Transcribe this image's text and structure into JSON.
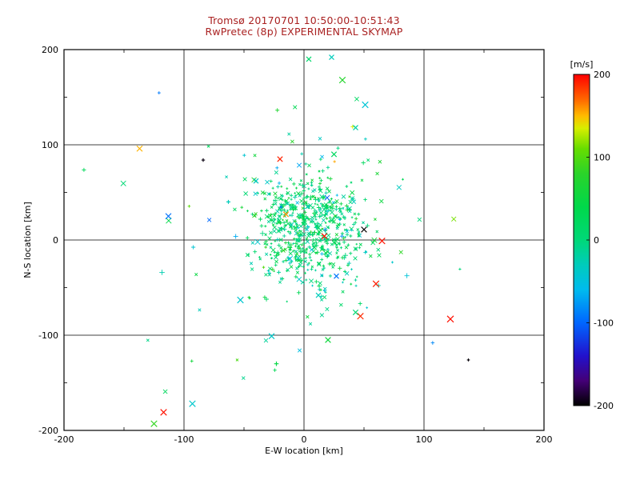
{
  "window": {
    "background": "#ffffff"
  },
  "chart_data": {
    "type": "scatter",
    "title": "Tromsø 20170701 10:50:00-10:51:43",
    "subtitle": "RwPretec (8p) EXPERIMENTAL SKYMAP",
    "title_color": "#aa2222",
    "xlabel": "E-W location [km]",
    "ylabel": "N-S location [km]",
    "xlim": [
      -200,
      200
    ],
    "ylim": [
      -200,
      200
    ],
    "xticks": [
      -200,
      -100,
      0,
      100,
      200
    ],
    "yticks": [
      -200,
      -100,
      0,
      100,
      200
    ],
    "minor_tick_step": 50,
    "grid": true,
    "axis_color": "#000000",
    "colorbar": {
      "title": "[m/s]",
      "title_color": "#ee2200",
      "vmin": -200,
      "vmax": 200,
      "ticks": [
        200,
        100,
        0,
        -100,
        -200
      ]
    },
    "colormap_stops": [
      {
        "v": 200,
        "color": "#ff0000"
      },
      {
        "v": 170,
        "color": "#ff6600"
      },
      {
        "v": 150,
        "color": "#ffbb00"
      },
      {
        "v": 135,
        "color": "#d8ee00"
      },
      {
        "v": 110,
        "color": "#66dd00"
      },
      {
        "v": 80,
        "color": "#2ad42a"
      },
      {
        "v": 40,
        "color": "#00d84a"
      },
      {
        "v": 0,
        "color": "#00d878"
      },
      {
        "v": -30,
        "color": "#00ccbb"
      },
      {
        "v": -60,
        "color": "#00bbee"
      },
      {
        "v": -100,
        "color": "#0066ff"
      },
      {
        "v": -140,
        "color": "#2211cc"
      },
      {
        "v": -170,
        "color": "#440077"
      },
      {
        "v": -200,
        "color": "#000000"
      }
    ],
    "point_clusters": [
      {
        "count": 640,
        "cx": 4,
        "cy": 12,
        "sx": 24,
        "sy": 28,
        "vmean": 15,
        "vsigma": 30,
        "seed": 1337,
        "size": 1.7
      },
      {
        "count": 90,
        "cx": 0,
        "cy": 5,
        "sx": 75,
        "sy": 80,
        "vmean": 0,
        "vsigma": 60,
        "seed": 2024,
        "size": 2.1
      }
    ],
    "outlier_points": [
      {
        "x": -137,
        "y": 96,
        "v": 152,
        "m": "x",
        "s": 3.5
      },
      {
        "x": -84,
        "y": 84,
        "v": -196,
        "m": "plus",
        "s": 2.2
      },
      {
        "x": -113,
        "y": 25,
        "v": -95,
        "m": "x",
        "s": 3.5
      },
      {
        "x": -20,
        "y": 85,
        "v": 190,
        "m": "x",
        "s": 3.2
      },
      {
        "x": 32,
        "y": 168,
        "v": 75,
        "m": "x",
        "s": 3.8
      },
      {
        "x": 4,
        "y": 190,
        "v": 10,
        "m": "x",
        "s": 3.0
      },
      {
        "x": 23,
        "y": 192,
        "v": -30,
        "m": "x",
        "s": 3.0
      },
      {
        "x": 51,
        "y": 142,
        "v": -45,
        "m": "x",
        "s": 3.8
      },
      {
        "x": 43,
        "y": 118,
        "v": -20,
        "m": "x",
        "s": 3.0
      },
      {
        "x": 25,
        "y": 90,
        "v": 20,
        "m": "x",
        "s": 3.2
      },
      {
        "x": -40,
        "y": 62,
        "v": -35,
        "m": "x",
        "s": 3.0
      },
      {
        "x": -63,
        "y": 40,
        "v": -30,
        "m": "plus",
        "s": 2.5
      },
      {
        "x": -15,
        "y": 27,
        "v": 160,
        "m": "x",
        "s": 3.2
      },
      {
        "x": 17,
        "y": 4,
        "v": 195,
        "m": "x",
        "s": 3.4
      },
      {
        "x": 50,
        "y": 11,
        "v": -200,
        "m": "x",
        "s": 3.4
      },
      {
        "x": 65,
        "y": -1,
        "v": 195,
        "m": "x",
        "s": 3.8
      },
      {
        "x": 60,
        "y": -46,
        "v": 192,
        "m": "x",
        "s": 3.8
      },
      {
        "x": 47,
        "y": -80,
        "v": 188,
        "m": "x",
        "s": 3.8
      },
      {
        "x": 122,
        "y": -83,
        "v": 196,
        "m": "x",
        "s": 4.0
      },
      {
        "x": 27,
        "y": -38,
        "v": -92,
        "m": "x",
        "s": 3.0
      },
      {
        "x": 12,
        "y": -58,
        "v": -30,
        "m": "x",
        "s": 3.0
      },
      {
        "x": -53,
        "y": -63,
        "v": -42,
        "m": "x",
        "s": 3.8
      },
      {
        "x": -27,
        "y": -101,
        "v": -38,
        "m": "x",
        "s": 3.4
      },
      {
        "x": 20,
        "y": -105,
        "v": 55,
        "m": "x",
        "s": 3.4
      },
      {
        "x": 43,
        "y": -76,
        "v": 5,
        "m": "x",
        "s": 3.2
      },
      {
        "x": 137,
        "y": -126,
        "v": -198,
        "m": "plus",
        "s": 1.8
      },
      {
        "x": -23,
        "y": -130,
        "v": 45,
        "m": "plus",
        "s": 2.8
      },
      {
        "x": -93,
        "y": -172,
        "v": -40,
        "m": "x",
        "s": 3.8
      },
      {
        "x": -117,
        "y": -181,
        "v": 195,
        "m": "x",
        "s": 3.8
      },
      {
        "x": -125,
        "y": -193,
        "v": 85,
        "m": "x",
        "s": 3.8
      }
    ]
  }
}
